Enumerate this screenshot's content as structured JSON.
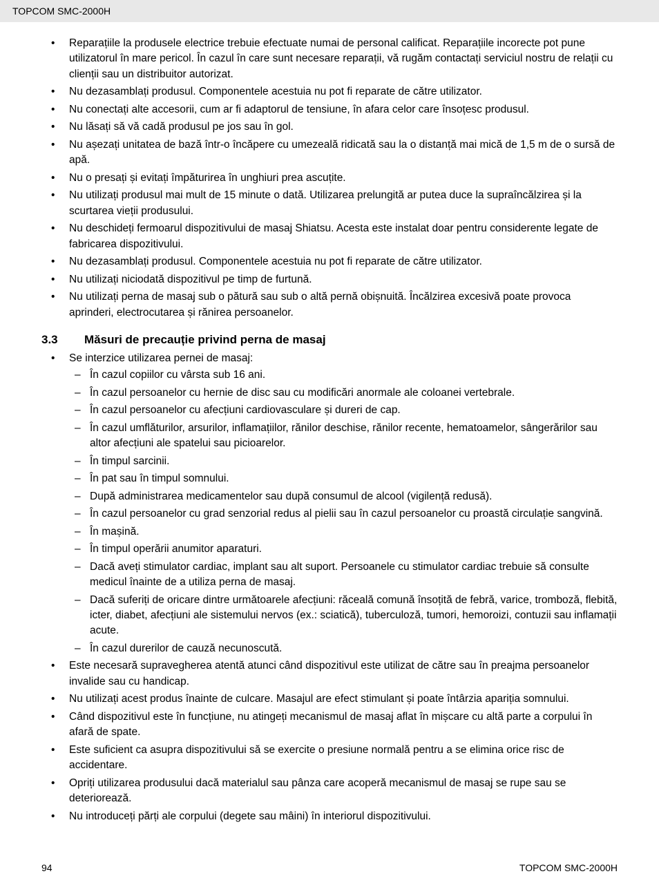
{
  "header": {
    "product": "TOPCOM SMC-2000H"
  },
  "list1": [
    "Reparațiile la produsele electrice trebuie efectuate numai de personal calificat. Reparațiile incorecte pot pune utilizatorul în mare pericol. În cazul în care sunt necesare reparații, vă rugăm contactați serviciul nostru de relații cu clienții sau un distribuitor autorizat.",
    "Nu dezasamblați produsul. Componentele acestuia nu pot fi reparate de către utilizator.",
    "Nu conectați alte accesorii, cum ar fi adaptorul de tensiune, în afara celor care însoțesc produsul.",
    "Nu lăsați să vă cadă produsul pe jos sau în gol.",
    "Nu așezați unitatea de bază într-o încăpere cu umezeală ridicată sau la o distanță mai mică de 1,5 m de o sursă de apă.",
    "Nu o presați și evitați împăturirea în unghiuri prea ascuțite.",
    "Nu utilizați produsul mai mult de 15 minute o dată.  Utilizarea prelungită ar putea duce la supraîncălzirea și la scurtarea vieții produsului.",
    "Nu deschideți fermoarul dispozitivului de masaj Shiatsu.  Acesta este instalat doar pentru considerente legate de fabricarea dispozitivului.",
    "Nu dezasamblați produsul. Componentele acestuia nu pot fi reparate de către utilizator.",
    "Nu utilizați niciodată dispozitivul pe timp de furtună.",
    "Nu utilizați perna de masaj sub o pătură sau sub o altă pernă obișnuită. Încălzirea excesivă poate provoca aprinderi, electrocutarea și rănirea persoanelor."
  ],
  "section": {
    "num": "3.3",
    "title": "Măsuri de precauție privind perna de masaj"
  },
  "list2_intro": "Se interzice utilizarea pernei de masaj:",
  "list2_sub": [
    "În cazul copiilor cu vârsta sub 16 ani.",
    "În cazul persoanelor cu hernie de disc sau cu modificări anormale ale coloanei vertebrale.",
    "În cazul persoanelor cu afecțiuni cardiovasculare și dureri de cap.",
    "În cazul umflăturilor, arsurilor, inflamațiilor, rănilor deschise, rănilor recente, hematoamelor, sângerărilor sau altor afecțiuni ale spatelui sau picioarelor.",
    "În timpul sarcinii.",
    "În pat sau în timpul somnului.",
    "După administrarea medicamentelor sau după consumul de alcool (vigilență redusă).",
    "În cazul persoanelor cu grad senzorial redus al pielii sau în cazul persoanelor cu proastă circulație sangvină.",
    "În mașină.",
    "În timpul operării anumitor aparaturi.",
    "Dacă aveți stimulator cardiac, implant sau alt suport. Persoanele cu stimulator cardiac trebuie să consulte medicul înainte de a utiliza perna de masaj.",
    "Dacă suferiți de oricare dintre următoarele afecțiuni: răceală comună însoțită de febră, varice, tromboză, flebită, icter, diabet, afecțiuni ale sistemului nervos (ex.: sciatică), tuberculoză, tumori, hemoroizi, contuzii sau inflamații acute.",
    "În cazul durerilor de cauză necunoscută."
  ],
  "list2_rest": [
    "Este necesară supravegherea atentă atunci când dispozitivul este utilizat de către sau în preajma persoanelor invalide sau cu handicap.",
    "Nu utilizați acest produs înainte de culcare. Masajul are efect stimulant și poate întârzia apariția somnului.",
    "Când dispozitivul este în funcțiune, nu atingeți mecanismul de masaj aflat în mișcare cu altă parte a corpului în afară de spate.",
    "Este suficient ca asupra dispozitivului să se exercite o presiune normală pentru a se elimina orice risc de accidentare.",
    "Opriți utilizarea produsului dacă materialul sau pânza care acoperă mecanismul de masaj se rupe sau se deteriorează.",
    "Nu introduceți părți ale corpului (degete sau mâini) în interiorul dispozitivului."
  ],
  "footer": {
    "page": "94",
    "product": "TOPCOM SMC-2000H"
  }
}
